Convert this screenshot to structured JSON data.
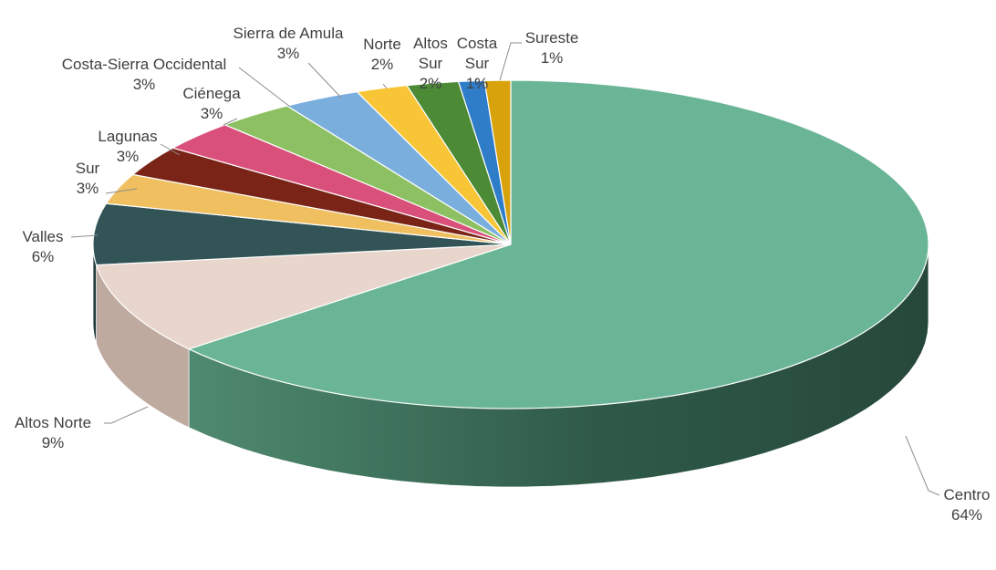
{
  "chart_data": {
    "type": "pie",
    "style": "3d",
    "title": "",
    "start_angle_deg": 0,
    "direction": "clockwise",
    "slices": [
      {
        "label": "Centro",
        "value": 64,
        "value_label": "64%",
        "color": "#6bb597",
        "side_color": "#2f4f41"
      },
      {
        "label": "Altos Norte",
        "value": 9,
        "value_label": "9%",
        "color": "#e8d5cb",
        "side_color": "#bfaaa0"
      },
      {
        "label": "Valles",
        "value": 6,
        "value_label": "6%",
        "color": "#325457",
        "side_color": "#223a3c"
      },
      {
        "label": "Sur",
        "value": 3,
        "value_label": "3%",
        "color": "#efbf60",
        "side_color": "#c79a45"
      },
      {
        "label": "Lagunas",
        "value": 3,
        "value_label": "3%",
        "color": "#7a2418",
        "side_color": "#5a1a11"
      },
      {
        "label": "Ciénega",
        "value": 3,
        "value_label": "3%",
        "color": "#d9507a",
        "side_color": "#a63b5c"
      },
      {
        "label": "Costa-Sierra Occidental",
        "value": 3,
        "value_label": "3%",
        "color": "#8dc063",
        "side_color": "#6a9149"
      },
      {
        "label": "Sierra de Amula",
        "value": 3,
        "value_label": "3%",
        "color": "#7aaedd",
        "side_color": "#5a84aa"
      },
      {
        "label": "Norte",
        "value": 2,
        "value_label": "2%",
        "color": "#f7c535",
        "side_color": "#c89c22"
      },
      {
        "label": "Altos Sur",
        "value": 2,
        "value_label": "2%",
        "color": "#4c8a35",
        "side_color": "#386627"
      },
      {
        "label": "Costa Sur",
        "value": 1,
        "value_label": "1%",
        "color": "#2f7dc8",
        "side_color": "#225e98"
      },
      {
        "label": "Sureste",
        "value": 1,
        "value_label": "1%",
        "color": "#d8a20d",
        "side_color": "#a57b08"
      }
    ],
    "labels": [
      {
        "name_lines": [
          "Centro"
        ],
        "value_label": "64%"
      },
      {
        "name_lines": [
          "Altos Norte"
        ],
        "value_label": "9%"
      },
      {
        "name_lines": [
          "Valles"
        ],
        "value_label": "6%"
      },
      {
        "name_lines": [
          "Sur"
        ],
        "value_label": "3%"
      },
      {
        "name_lines": [
          "Lagunas"
        ],
        "value_label": "3%"
      },
      {
        "name_lines": [
          "Ciénega"
        ],
        "value_label": "3%"
      },
      {
        "name_lines": [
          "Costa-Sierra Occidental"
        ],
        "value_label": "3%"
      },
      {
        "name_lines": [
          "Sierra de Amula"
        ],
        "value_label": "3%"
      },
      {
        "name_lines": [
          "Norte"
        ],
        "value_label": "2%"
      },
      {
        "name_lines": [
          "Altos",
          "Sur"
        ],
        "value_label": "2%"
      },
      {
        "name_lines": [
          "Costa",
          "Sur"
        ],
        "value_label": "1%"
      },
      {
        "name_lines": [
          "Sureste"
        ],
        "value_label": "1%"
      }
    ]
  }
}
